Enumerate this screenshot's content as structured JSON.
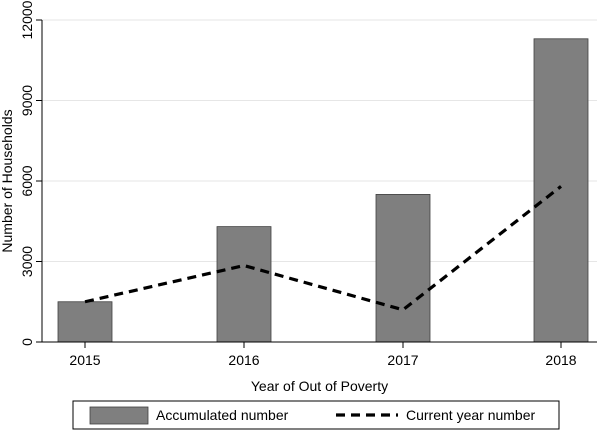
{
  "chart_data": {
    "type": "bar",
    "categories": [
      "2015",
      "2016",
      "2017",
      "2018"
    ],
    "series": [
      {
        "name": "Accumulated number",
        "kind": "bar",
        "values": [
          1500,
          4300,
          5500,
          11300
        ]
      },
      {
        "name": "Current year number",
        "kind": "line",
        "values": [
          1500,
          2850,
          1200,
          5800
        ]
      }
    ],
    "xlabel": "Year of Out of Poverty",
    "ylabel": "Number of Households",
    "ylim": [
      0,
      12000
    ],
    "yticks": [
      0,
      3000,
      6000,
      9000,
      12000
    ],
    "grid": true,
    "legend_position": "bottom",
    "colors": {
      "bar_fill": "#7f7f7f",
      "bar_stroke": "#404040",
      "line": "#000000",
      "grid": "#e6e6e6"
    }
  }
}
